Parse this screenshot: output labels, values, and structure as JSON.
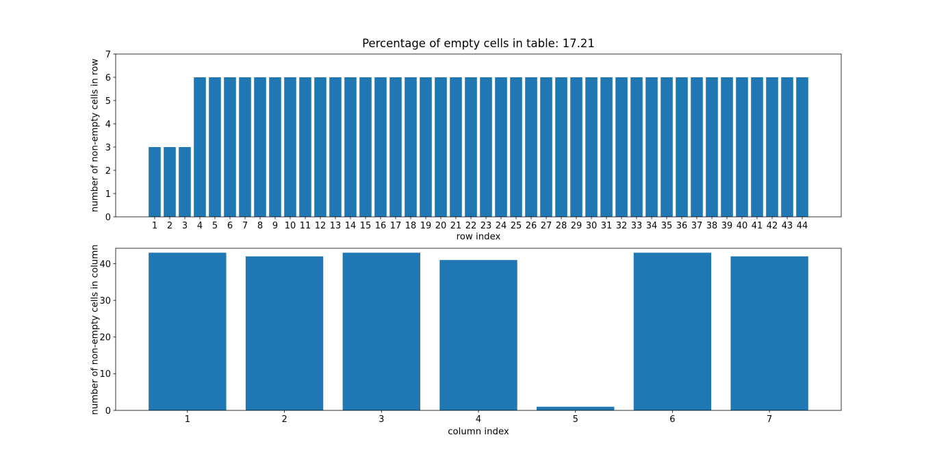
{
  "figure": {
    "background": "#ffffff",
    "bar_color": "#1f77b4",
    "axis_color": "#000000",
    "text_color": "#000000"
  },
  "chart_data": [
    {
      "type": "bar",
      "title": "Percentage of empty cells in table: 17.21",
      "xlabel": "row index",
      "ylabel": "number of non-empty cells in row",
      "categories": [
        1,
        2,
        3,
        4,
        5,
        6,
        7,
        8,
        9,
        10,
        11,
        12,
        13,
        14,
        15,
        16,
        17,
        18,
        19,
        20,
        21,
        22,
        23,
        24,
        25,
        26,
        27,
        28,
        29,
        30,
        31,
        32,
        33,
        34,
        35,
        36,
        37,
        38,
        39,
        40,
        41,
        42,
        43,
        44
      ],
      "values": [
        3,
        3,
        3,
        6,
        6,
        6,
        6,
        6,
        6,
        6,
        6,
        6,
        6,
        6,
        6,
        6,
        6,
        6,
        6,
        6,
        6,
        6,
        6,
        6,
        6,
        6,
        6,
        6,
        6,
        6,
        6,
        6,
        6,
        6,
        6,
        6,
        6,
        6,
        6,
        6,
        6,
        6,
        6,
        6
      ],
      "ylim": [
        0,
        7
      ],
      "yticks": [
        0,
        1,
        2,
        3,
        4,
        5,
        6,
        7
      ],
      "bar_width": 0.8,
      "grid": false,
      "legend": false
    },
    {
      "type": "bar",
      "title": "",
      "xlabel": "column index",
      "ylabel": "number of non-empty cells in column",
      "categories": [
        1,
        2,
        3,
        4,
        5,
        6,
        7
      ],
      "values": [
        43,
        42,
        43,
        41,
        1,
        43,
        42
      ],
      "ylim": [
        0,
        44.2
      ],
      "yticks": [
        0,
        10,
        20,
        30,
        40
      ],
      "bar_width": 0.8,
      "grid": false,
      "legend": false
    }
  ]
}
